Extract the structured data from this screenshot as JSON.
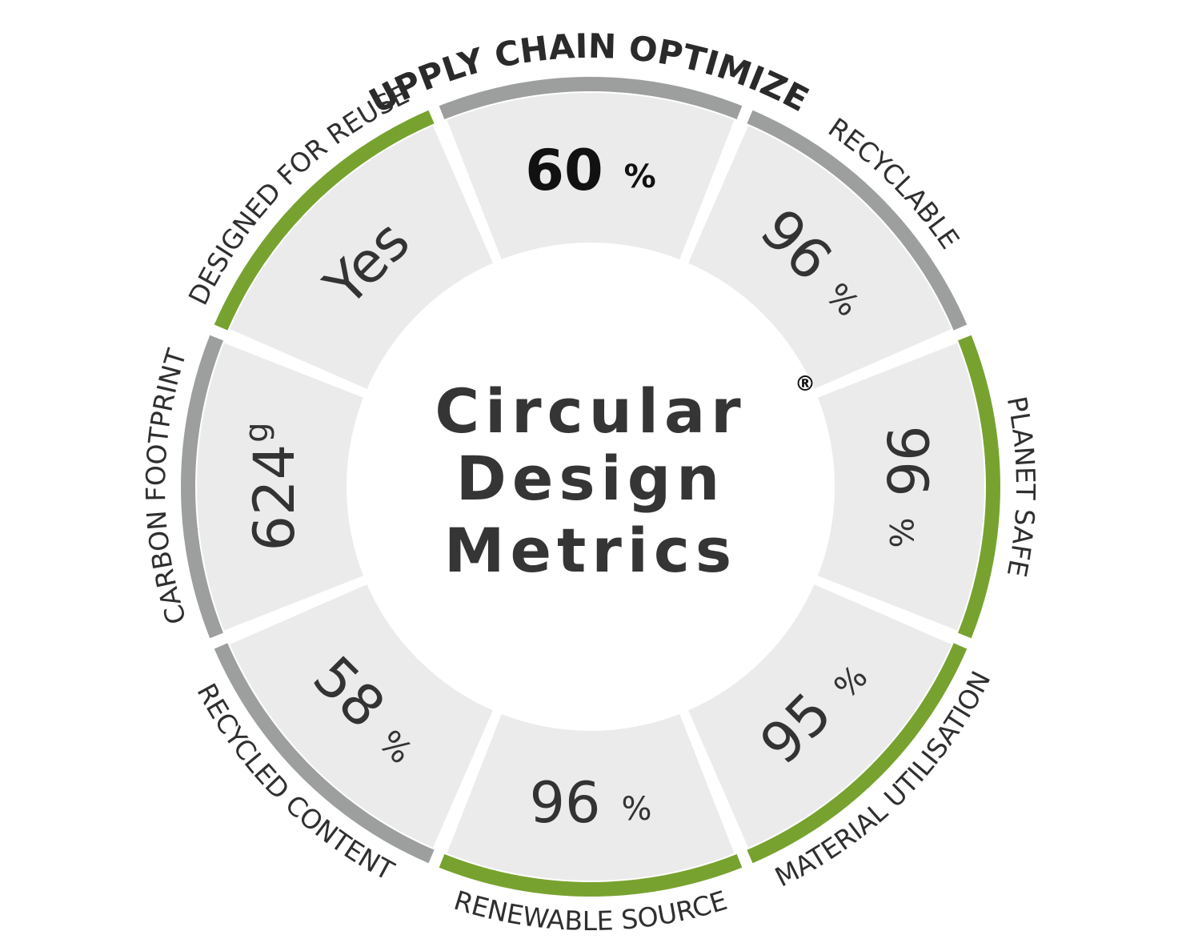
{
  "center": {
    "line1": "Circular",
    "line2": "Design",
    "line3": "Metrics",
    "registered": "®"
  },
  "colors": {
    "tile": "#ebebeb",
    "center": "#ffffff",
    "gray_arc": "#9d9e9e",
    "green_arc": "#78a22f"
  },
  "segments": [
    {
      "id": "supply-chain-optimized",
      "label": "SUPPLY CHAIN OPTIMIZED",
      "value": "60",
      "unit": "%",
      "arc": "gray",
      "emphasis": true
    },
    {
      "id": "recyclable",
      "label": "RECYCLABLE",
      "value": "96",
      "unit": "%",
      "arc": "gray",
      "emphasis": false
    },
    {
      "id": "planet-safe",
      "label": "PLANET SAFE",
      "value": "96",
      "unit": "%",
      "arc": "green",
      "emphasis": false
    },
    {
      "id": "material-utilisation",
      "label": "MATERIAL UTILISATION",
      "value": "95",
      "unit": "%",
      "arc": "green",
      "emphasis": false
    },
    {
      "id": "renewable-source",
      "label": "RENEWABLE SOURCE",
      "value": "96",
      "unit": "%",
      "arc": "green",
      "emphasis": false
    },
    {
      "id": "recycled-content",
      "label": "RECYCLED CONTENT",
      "value": "58",
      "unit": "%",
      "arc": "gray",
      "emphasis": false
    },
    {
      "id": "carbon-footprint",
      "label": "CARBON FOOTPRINT",
      "value": "624",
      "unit": "g",
      "arc": "gray",
      "emphasis": false
    },
    {
      "id": "designed-for-reuse",
      "label": "DESIGNED FOR REUSE",
      "value": "Yes",
      "unit": "",
      "arc": "green",
      "emphasis": false
    }
  ]
}
